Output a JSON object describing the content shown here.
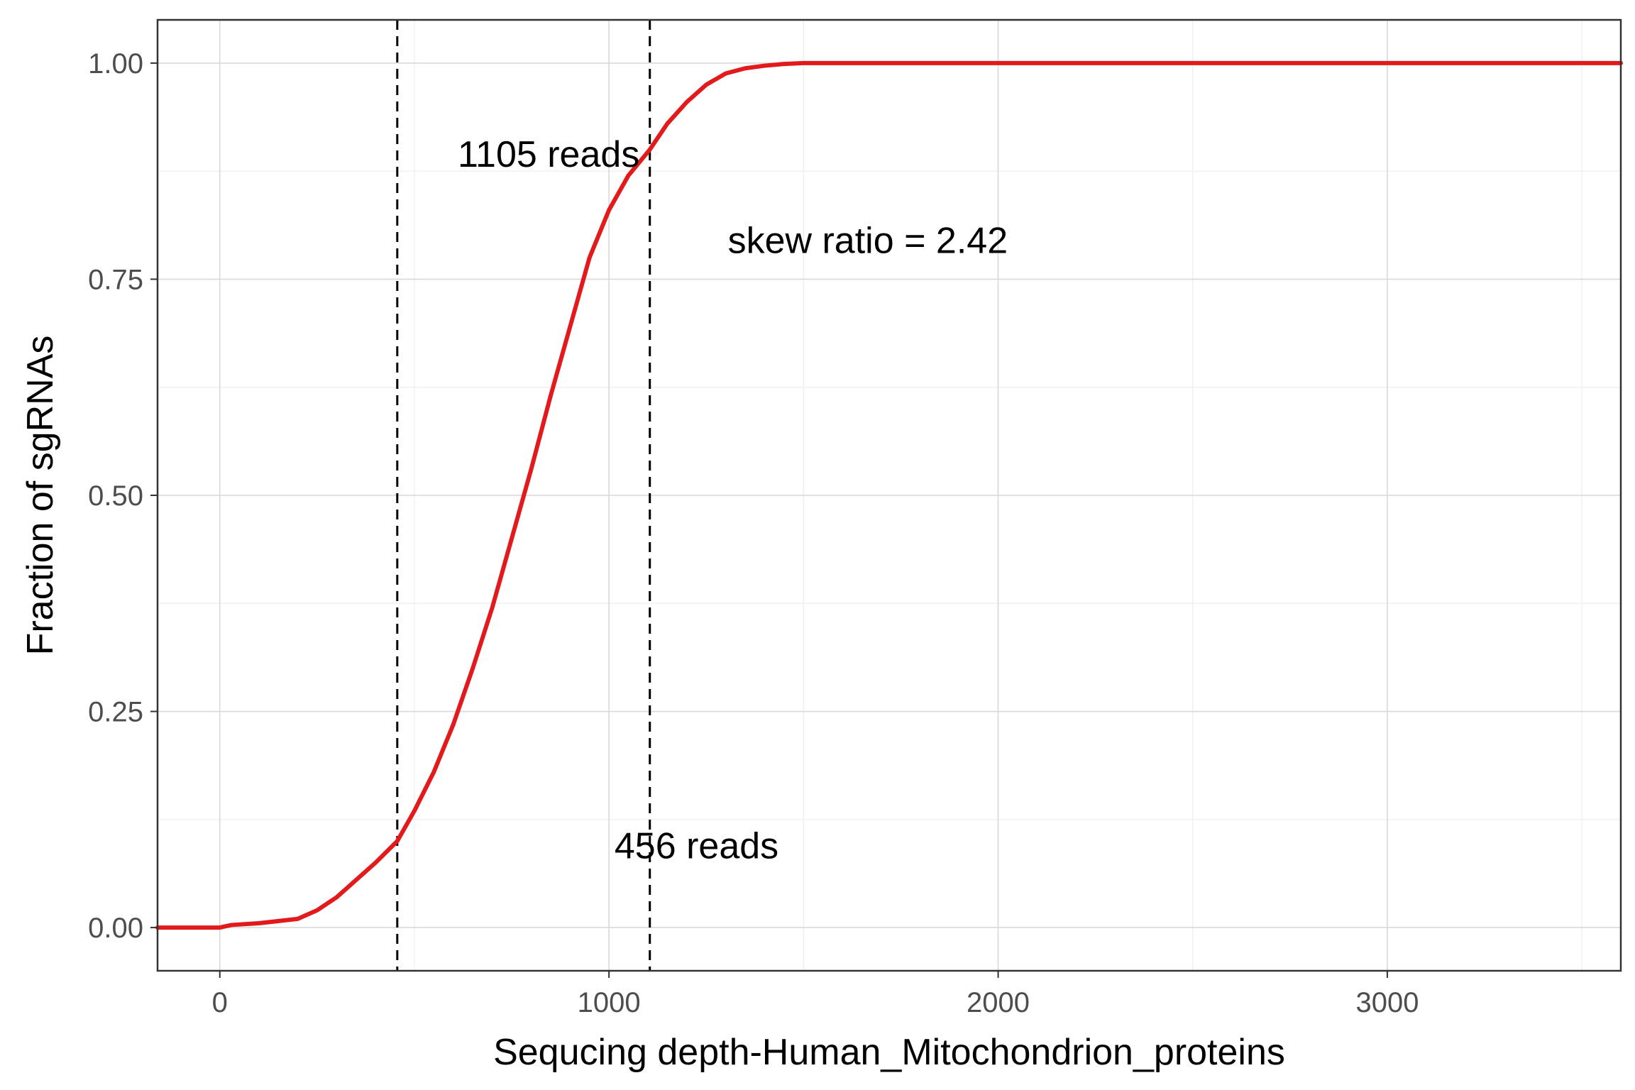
{
  "chart_data": {
    "type": "line",
    "title": "",
    "xlabel": "Sequcing depth-Human_Mitochondrion_proteins",
    "ylabel": "Fraction of sgRNAs",
    "xlim": [
      -160,
      3600
    ],
    "ylim": [
      -0.05,
      1.05
    ],
    "x_ticks": [
      0,
      1000,
      2000,
      3000
    ],
    "x_tick_labels": [
      "0",
      "1000",
      "2000",
      "3000"
    ],
    "y_ticks": [
      0,
      0.25,
      0.5,
      0.75,
      1
    ],
    "y_tick_labels": [
      "0.00",
      "0.25",
      "0.50",
      "0.75",
      "1.00"
    ],
    "grid": true,
    "legend": "none",
    "series": [
      {
        "color": "#e31a1c",
        "x": [
          -160,
          0,
          30,
          100,
          200,
          250,
          300,
          350,
          400,
          456,
          500,
          550,
          600,
          650,
          700,
          750,
          800,
          850,
          900,
          950,
          1000,
          1050,
          1105,
          1150,
          1200,
          1250,
          1300,
          1350,
          1400,
          1450,
          1500,
          1550,
          1600,
          2000,
          3000,
          3400,
          3600
        ],
        "y": [
          0,
          0,
          0.003,
          0.005,
          0.01,
          0.02,
          0.035,
          0.055,
          0.075,
          0.1,
          0.135,
          0.18,
          0.235,
          0.3,
          0.37,
          0.45,
          0.53,
          0.615,
          0.695,
          0.775,
          0.83,
          0.87,
          0.9,
          0.93,
          0.955,
          0.975,
          0.988,
          0.994,
          0.997,
          0.999,
          1.0,
          1.0,
          1.0,
          1.0,
          1.0,
          1.0,
          1.0
        ]
      }
    ],
    "vlines": [
      {
        "x": 456,
        "style": "dashed",
        "color": "#000000"
      },
      {
        "x": 1105,
        "style": "dashed",
        "color": "#000000"
      }
    ],
    "annotations": [
      {
        "text": "1105 reads",
        "x": 845,
        "y": 0.895
      },
      {
        "text": "skew ratio = 2.42",
        "x": 1665,
        "y": 0.795
      },
      {
        "text": "456 reads",
        "x": 1225,
        "y": 0.095
      }
    ]
  }
}
